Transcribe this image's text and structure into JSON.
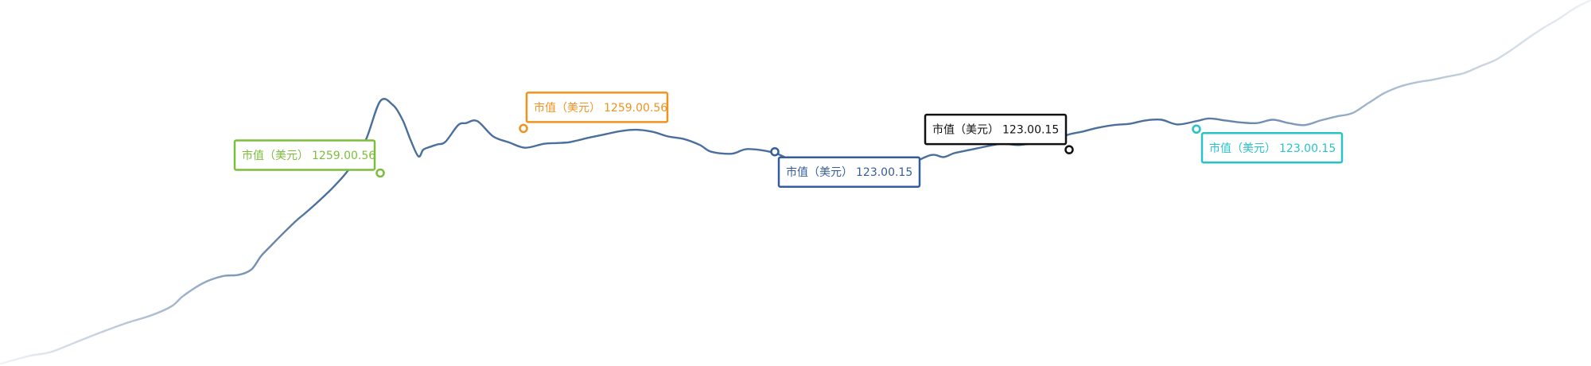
{
  "chart_data": {
    "type": "line",
    "title": "",
    "xlabel": "",
    "ylabel": "",
    "grid": true,
    "y_gridlines": [
      1330,
      1220,
      1185,
      1140
    ],
    "xlim": [
      0,
      100
    ],
    "ylim": [
      900,
      1450
    ],
    "series": [
      {
        "color": "#4a6f9c",
        "x": [
          0,
          1.8,
          3.2,
          5.0,
          6.5,
          8.0,
          9.5,
          10.8,
          11.5,
          12.8,
          14.0,
          15.0,
          15.8,
          16.4,
          17.0,
          17.7,
          18.6,
          19.2,
          20.0,
          21.0,
          22.0,
          23.0,
          23.9,
          24.7,
          25.3,
          25.8,
          26.3,
          26.6,
          27.0,
          27.5,
          28.0,
          28.8,
          29.3,
          30.0,
          31.0,
          32.0,
          33.0,
          34.2,
          35.0,
          35.7,
          36.3,
          37.0,
          38.0,
          39.0,
          40.0,
          41.0,
          42.0,
          43.0,
          44.0,
          44.7,
          46.0,
          47.0,
          48.7,
          50.0,
          51.0,
          52.0,
          53.0,
          54.0,
          55.3,
          56.0,
          57.0,
          58.5,
          59.3,
          60.0,
          61.0,
          62.0,
          63.0,
          64.0,
          65.0,
          66.0,
          67.2,
          68.0,
          69.0,
          70.0,
          71.0,
          72.0,
          73.0,
          74.0,
          75.2,
          76.0,
          77.0,
          78.0,
          79.0,
          80.0,
          81.0,
          82.0,
          83.0,
          84.0,
          85.0,
          86.0,
          87.0,
          88.0,
          89.0,
          90.0,
          91.0,
          92.0,
          93.0,
          94.0,
          95.0,
          96.0,
          97.0,
          98.0,
          99.0,
          100.0
        ],
        "y": [
          903,
          915,
          921,
          938,
          952,
          965,
          976,
          990,
          1005,
          1025,
          1035,
          1037,
          1045,
          1065,
          1080,
          1097,
          1118,
          1130,
          1147,
          1170,
          1198,
          1240,
          1298,
          1292,
          1270,
          1240,
          1215,
          1225,
          1229,
          1233,
          1237,
          1262,
          1265,
          1268,
          1245,
          1236,
          1228,
          1234,
          1235,
          1236,
          1239,
          1243,
          1248,
          1253,
          1255,
          1252,
          1245,
          1241,
          1232,
          1222,
          1219,
          1226,
          1220,
          1205,
          1190,
          1192,
          1200,
          1203,
          1212,
          1204,
          1202,
          1217,
          1214,
          1220,
          1225,
          1230,
          1234,
          1232,
          1235,
          1238,
          1248,
          1252,
          1258,
          1262,
          1264,
          1269,
          1270,
          1263,
          1268,
          1272,
          1269,
          1266,
          1265,
          1270,
          1265,
          1262,
          1269,
          1275,
          1280,
          1295,
          1310,
          1320,
          1326,
          1330,
          1335,
          1340,
          1350,
          1360,
          1375,
          1392,
          1408,
          1422,
          1438,
          1450
        ]
      }
    ],
    "annotations": [
      {
        "label": "市值（美元）",
        "value": "1259.00.56",
        "color": "#7cbd3c",
        "x": 23.9,
        "y": 1190
      },
      {
        "label": "市值（美元）",
        "value": "1259.00.56",
        "color": "#f0931e",
        "x": 32.9,
        "y": 1257
      },
      {
        "label": "市值（美元）",
        "value": "123.00.15",
        "color": "#355d9b",
        "x": 48.7,
        "y": 1222
      },
      {
        "label": "市值（美元）",
        "value": "123.00.15",
        "color": "#111111",
        "x": 67.2,
        "y": 1225
      },
      {
        "label": "市值（美元）",
        "value": "123.00.15",
        "color": "#27c3c9",
        "x": 75.2,
        "y": 1256
      }
    ]
  }
}
